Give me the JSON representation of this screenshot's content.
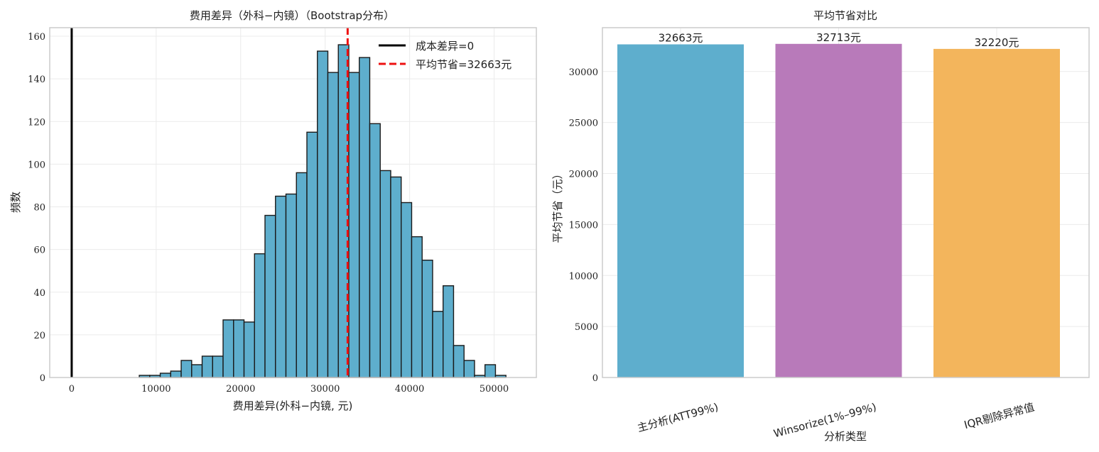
{
  "chart_data": [
    {
      "type": "histogram",
      "title": "费用差异（外科−内镜）（Bootstrap分布）",
      "xlabel": "费用差异(外科−内镜, 元)",
      "ylabel": "频数",
      "xlim": [
        -2600,
        55000
      ],
      "ylim": [
        0,
        164
      ],
      "xticks": [
        0,
        10000,
        20000,
        30000,
        40000,
        50000
      ],
      "yticks": [
        0,
        20,
        40,
        60,
        80,
        100,
        120,
        140,
        160
      ],
      "grid": true,
      "bar_color": "#5eaecd",
      "bin_start": 8000,
      "bin_width": 1240,
      "counts": [
        1,
        1,
        2,
        3,
        8,
        6,
        10,
        10,
        27,
        27,
        26,
        58,
        76,
        85,
        86,
        96,
        115,
        153,
        143,
        156,
        143,
        150,
        119,
        97,
        94,
        82,
        66,
        55,
        31,
        43,
        15,
        8,
        1,
        6,
        1
      ],
      "lines": [
        {
          "x": 0,
          "label": "成本差异=0",
          "color": "#000000",
          "style": "solid"
        },
        {
          "x": 32663,
          "label": "平均节省=32663元",
          "color": "#ee1111",
          "style": "dashed"
        }
      ],
      "legend_position": "top-right"
    },
    {
      "type": "bar",
      "title": "平均节省对比",
      "xlabel": "分析类型",
      "ylabel": "平均节省（元）",
      "ylim": [
        0,
        34300
      ],
      "yticks": [
        0,
        5000,
        10000,
        15000,
        20000,
        25000,
        30000
      ],
      "grid": true,
      "categories": [
        "主分析(ATT99%)",
        "Winsorize(1%–99%)",
        "IQR剔除异常值"
      ],
      "values": [
        32663,
        32713,
        32220
      ],
      "data_labels": [
        "32663元",
        "32713元",
        "32220元"
      ],
      "colors": [
        "#5eaecd",
        "#b87aba",
        "#f3b55c"
      ]
    }
  ]
}
